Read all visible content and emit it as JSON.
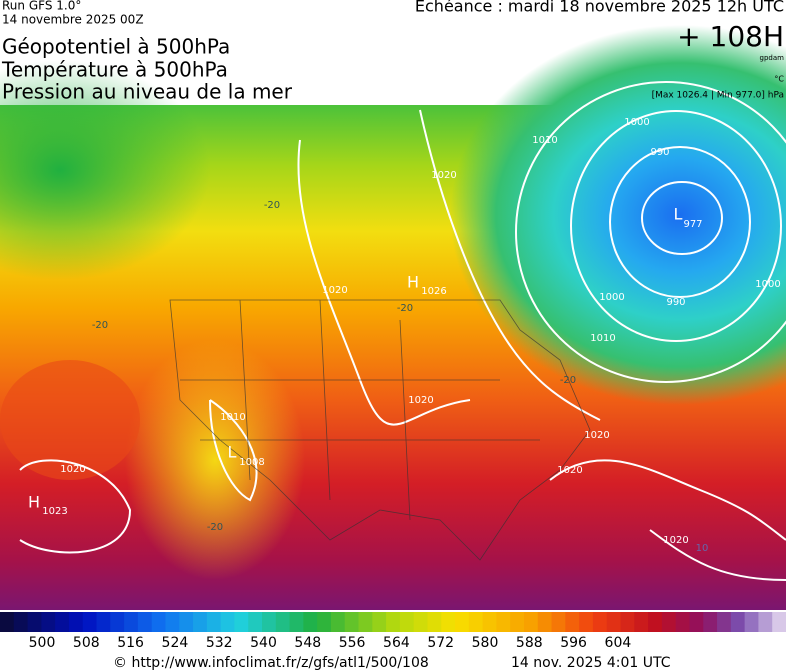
{
  "header": {
    "run": "Run GFS 1.0°",
    "date": "14 novembre 2025 00Z",
    "echeance": "Echéance : mardi 18 novembre 2025 12h UTC",
    "lead": "+ 108H",
    "unit_gpdam": "gpdam",
    "unit_c": "°C",
    "minmax": "[Max 1026.4 | Min 977.0] hPa",
    "titles": [
      "Géopotentiel à 500hPa",
      "Température à 500hPa",
      "Pression au niveau de la mer"
    ]
  },
  "map": {
    "labels": [
      "1010",
      "1000",
      "990",
      "L",
      "977",
      "1000",
      "990",
      "1010",
      "1000",
      "-20",
      "-20",
      "-20",
      "-20",
      "-20",
      "1020",
      "1020",
      "H",
      "1026",
      "1020",
      "1010",
      "L",
      "1008",
      "1020",
      "H",
      "1023",
      "1020",
      "1020",
      "1020",
      "10"
    ]
  },
  "colorbar": {
    "labels": [
      "500",
      "508",
      "516",
      "524",
      "532",
      "540",
      "548",
      "556",
      "564",
      "572",
      "580",
      "588",
      "596",
      "604"
    ]
  },
  "footer": {
    "url": "© http://www.infoclimat.fr/z/gfs/atl1/500/108",
    "time": "14 nov. 2025  4:01 UTC"
  }
}
